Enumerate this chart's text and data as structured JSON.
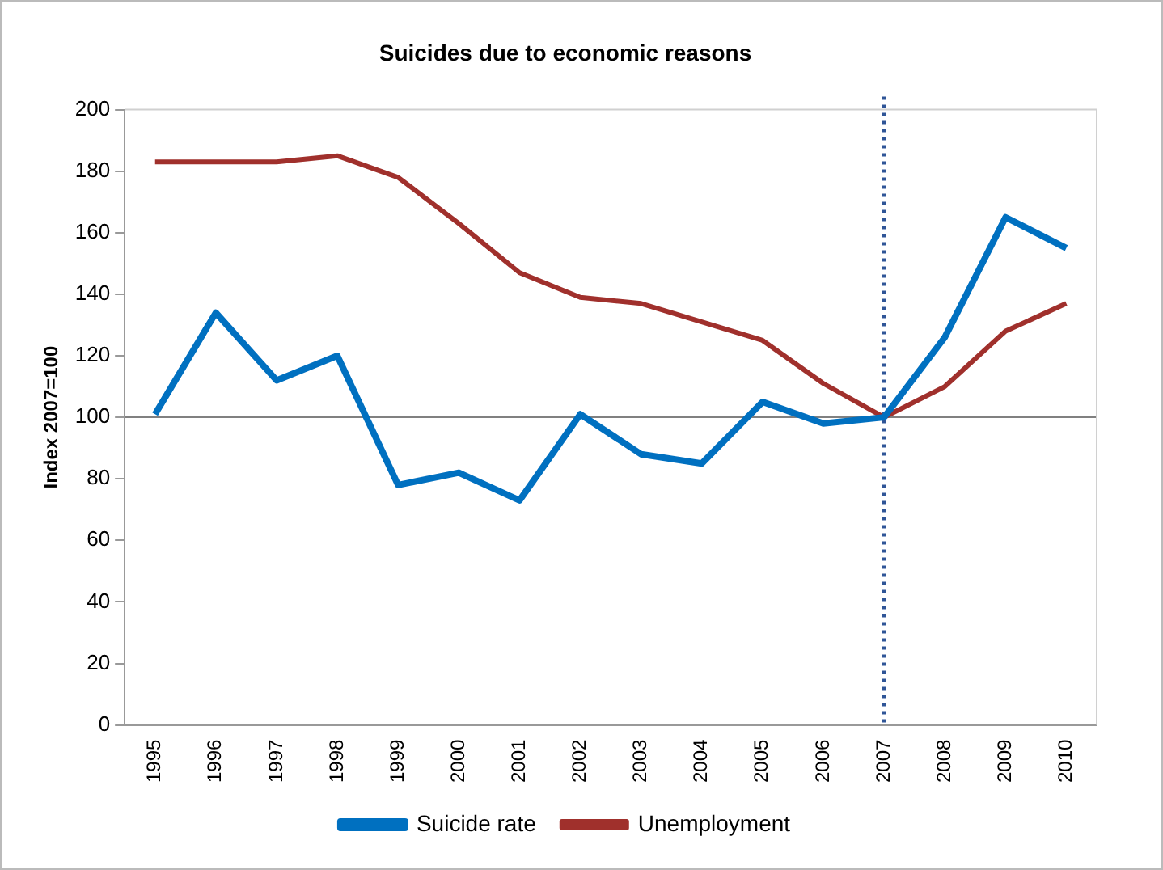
{
  "chart_data": {
    "type": "line",
    "title": "Suicides due to economic reasons",
    "ylabel": "Index 2007=100",
    "categories": [
      "1995",
      "1996",
      "1997",
      "1998",
      "1999",
      "2000",
      "2001",
      "2002",
      "2003",
      "2004",
      "2005",
      "2006",
      "2007",
      "2008",
      "2009",
      "2010"
    ],
    "series": [
      {
        "name": "Suicide rate",
        "color": "#0070c0",
        "values": [
          101,
          134,
          112,
          120,
          78,
          82,
          73,
          101,
          88,
          85,
          105,
          98,
          100,
          126,
          165,
          155
        ]
      },
      {
        "name": "Unemployment",
        "color": "#a0302c",
        "values": [
          183,
          183,
          183,
          185,
          178,
          163,
          147,
          139,
          137,
          131,
          125,
          111,
          100,
          110,
          128,
          137
        ]
      }
    ],
    "ylim": [
      0,
      200
    ],
    "yticks": [
      0,
      20,
      40,
      60,
      80,
      100,
      120,
      140,
      160,
      180,
      200
    ],
    "ref_lines": [
      {
        "axis": "y",
        "value": 100,
        "color": "#808080",
        "line_style": "solid"
      },
      {
        "axis": "x",
        "value": "2007",
        "color": "#2f5597",
        "line_style": "dotted"
      }
    ],
    "grid": false,
    "legend": "bottom",
    "marker": "none"
  }
}
